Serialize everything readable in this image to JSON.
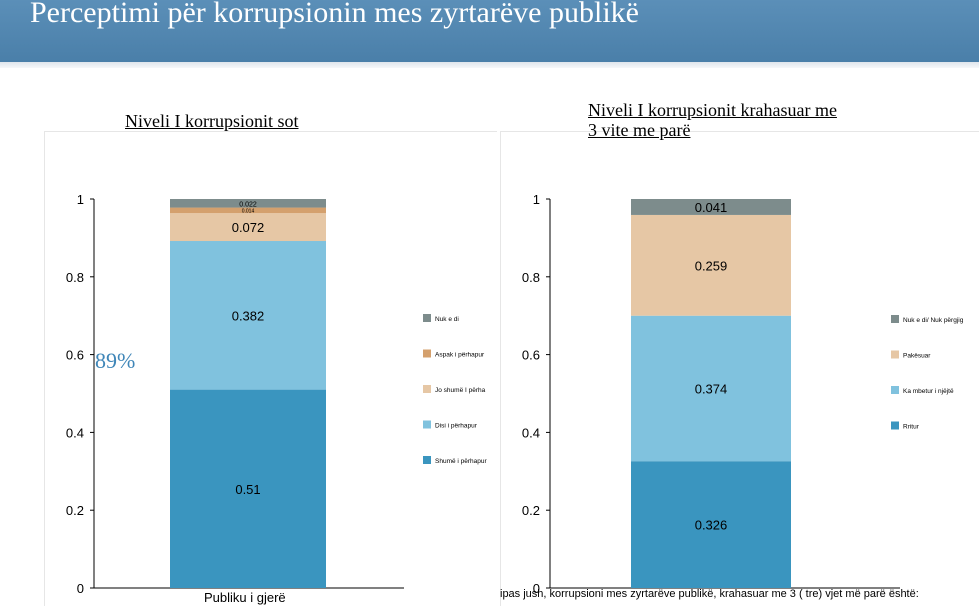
{
  "title": "Perceptimi për korrupsionin mes zyrtarëve publikë",
  "annotation": "89%",
  "footnote": "ipas jush, korrupsioni mes zyrtarëve publikë, krahasuar me 3 ( tre) vjet më parë është:",
  "chart_data": [
    {
      "type": "bar",
      "stacked": true,
      "title": "Niveli I korrupsionit sot",
      "categories": [
        "Publiku i gjerë"
      ],
      "ylim": [
        0,
        1
      ],
      "yticks": [
        "0",
        "0.2",
        "0.4",
        "0.6",
        "0.8",
        "1"
      ],
      "legend_position": "right",
      "series": [
        {
          "name": "Shumë i përhapur",
          "values": [
            0.51
          ],
          "color": "#3a95bf",
          "label": "0.51"
        },
        {
          "name": "Disi i përhapur",
          "values": [
            0.382
          ],
          "color": "#80c2de",
          "label": "0.382"
        },
        {
          "name": "Jo shumë I përha",
          "values": [
            0.072
          ],
          "color": "#e6c7a5",
          "label": "0.072"
        },
        {
          "name": "Aspak i përhapur",
          "values": [
            0.014
          ],
          "color": "#d4a06d",
          "label": "0.014"
        },
        {
          "name": "Nuk e di",
          "values": [
            0.022
          ],
          "color": "#7d8c8c",
          "label": "0.022"
        }
      ]
    },
    {
      "type": "bar",
      "stacked": true,
      "title": "Niveli I korrupsionit krahasuar me 3 vite me parë",
      "categories": [
        ""
      ],
      "ylim": [
        0,
        1
      ],
      "yticks": [
        "0",
        "0.2",
        "0.4",
        "0.6",
        "0.8",
        "1"
      ],
      "legend_position": "right",
      "series": [
        {
          "name": "Rritur",
          "values": [
            0.326
          ],
          "color": "#3a95bf",
          "label": "0.326"
        },
        {
          "name": "Ka mbetur i njëjtë",
          "values": [
            0.374
          ],
          "color": "#80c2de",
          "label": "0.374"
        },
        {
          "name": "Pakësuar",
          "values": [
            0.259
          ],
          "color": "#e6c7a5",
          "label": "0.259"
        },
        {
          "name": "Nuk e di/ Nuk përgjig",
          "values": [
            0.041
          ],
          "color": "#7d8c8c",
          "label": "0.041"
        }
      ]
    }
  ]
}
